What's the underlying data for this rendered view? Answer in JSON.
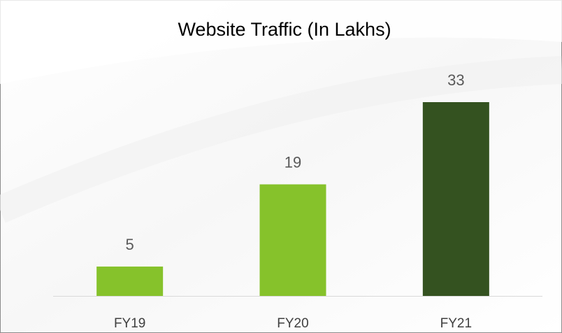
{
  "chart_data": {
    "type": "bar",
    "title": "Website Traffic (In Lakhs)",
    "categories": [
      "FY19",
      "FY20",
      "FY21"
    ],
    "values": [
      5,
      19,
      33
    ],
    "colors": [
      "#86c22b",
      "#86c22b",
      "#345220"
    ]
  }
}
